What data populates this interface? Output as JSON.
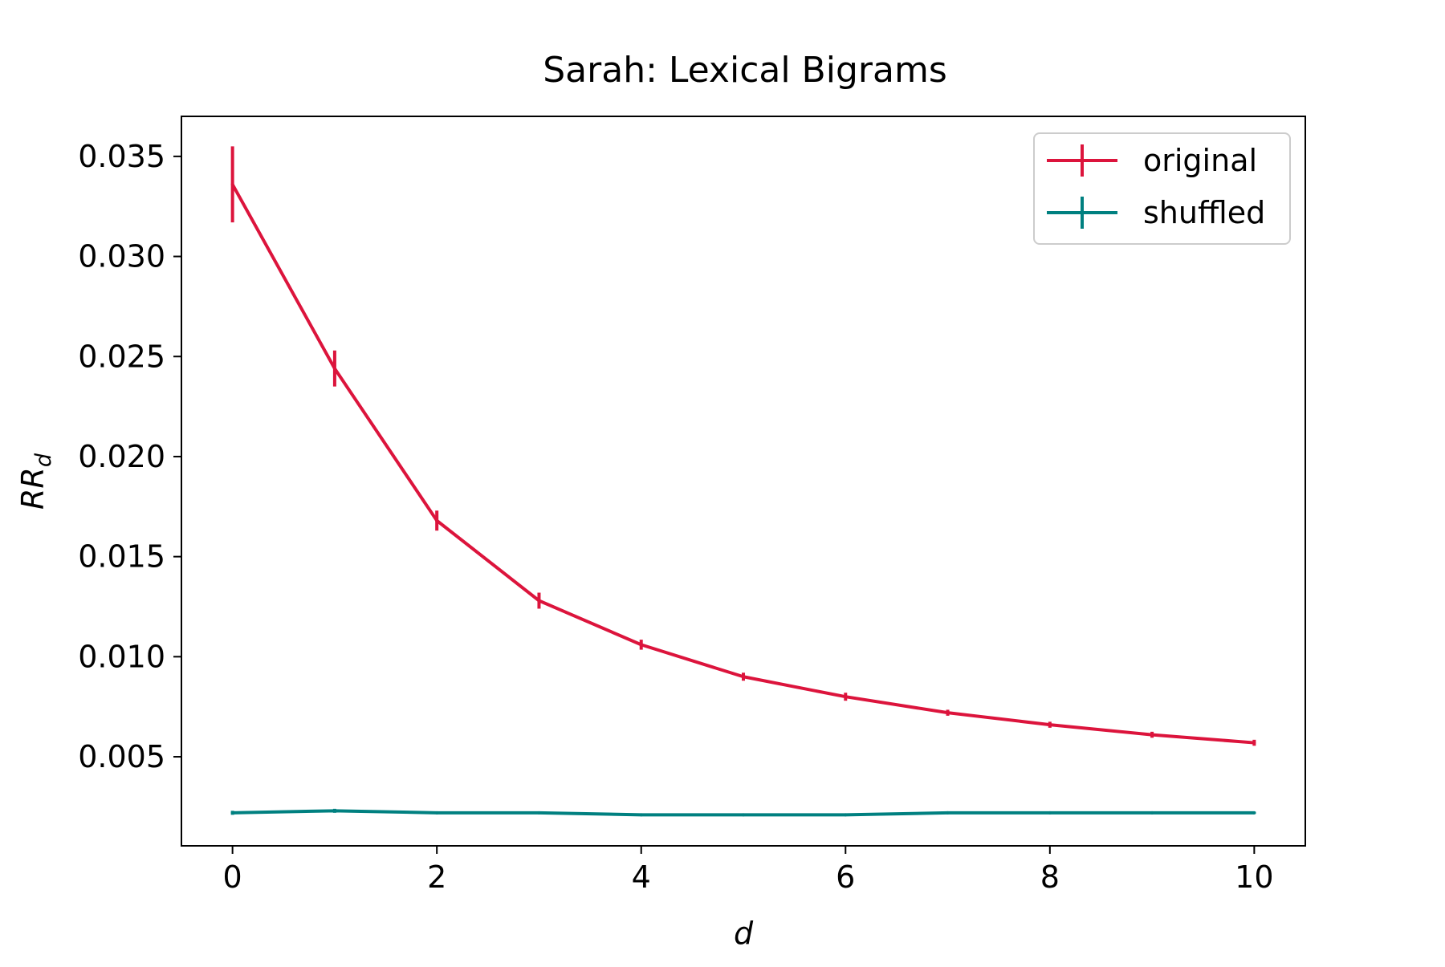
{
  "chart_data": {
    "type": "line",
    "title": "Sarah: Lexical Bigrams",
    "xlabel": "d",
    "ylabel": {
      "main": "RR",
      "subscript": "d"
    },
    "xlim": [
      -0.5,
      10.5
    ],
    "ylim": [
      0.00055,
      0.037
    ],
    "xticks": [
      0,
      2,
      4,
      6,
      8,
      10
    ],
    "xtick_labels": [
      "0",
      "2",
      "4",
      "6",
      "8",
      "10"
    ],
    "yticks": [
      0.005,
      0.01,
      0.015,
      0.02,
      0.025,
      0.03,
      0.035
    ],
    "ytick_labels": [
      "0.005",
      "0.010",
      "0.015",
      "0.020",
      "0.025",
      "0.030",
      "0.035"
    ],
    "grid": false,
    "legend_position": "top-right",
    "x": [
      0,
      1,
      2,
      3,
      4,
      5,
      6,
      7,
      8,
      9,
      10
    ],
    "series": [
      {
        "name": "original",
        "color": "#dc143c",
        "values": [
          0.0336,
          0.0244,
          0.0168,
          0.0128,
          0.0106,
          0.009,
          0.008,
          0.0072,
          0.0066,
          0.0061,
          0.0057
        ],
        "errors": [
          0.0019,
          0.0009,
          0.0005,
          0.0004,
          0.00025,
          0.0002,
          0.0002,
          0.00015,
          0.00015,
          0.00015,
          0.00015
        ]
      },
      {
        "name": "shuffled",
        "color": "#008080",
        "values": [
          0.0022,
          0.0023,
          0.0022,
          0.0022,
          0.0021,
          0.0021,
          0.0021,
          0.0022,
          0.0022,
          0.0022,
          0.0022
        ],
        "errors": [
          0.0001,
          0.0001,
          5e-05,
          5e-05,
          5e-05,
          5e-05,
          5e-05,
          5e-05,
          5e-05,
          5e-05,
          5e-05
        ]
      }
    ]
  }
}
